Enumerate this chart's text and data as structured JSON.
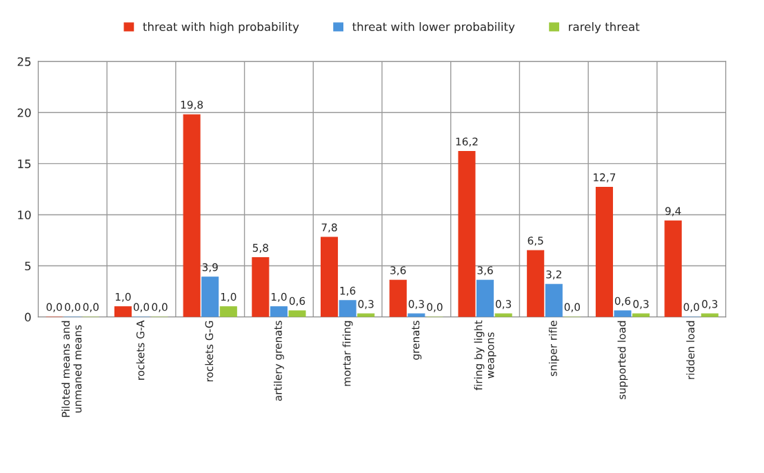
{
  "chart_data": {
    "type": "bar",
    "categories": [
      "Piloted means and\nunmaned means",
      "rockets G-A",
      "rockets G-G",
      "artilery grenats",
      "mortar firing",
      "grenats",
      "firing by light\nweapons",
      "sniper rifle",
      "supported load",
      "ridden load"
    ],
    "series": [
      {
        "name": "threat with high probability",
        "color": "#e8381a",
        "values": [
          0.0,
          1.0,
          19.8,
          5.8,
          7.8,
          3.6,
          16.2,
          6.5,
          12.7,
          9.4
        ],
        "value_labels": [
          "0,0",
          "1,0",
          "19,8",
          "5,8",
          "7,8",
          "3,6",
          "16,2",
          "6,5",
          "12,7",
          "9,4"
        ]
      },
      {
        "name": "threat with lower probability",
        "color": "#4a94dc",
        "values": [
          0.0,
          0.0,
          3.9,
          1.0,
          1.6,
          0.3,
          3.6,
          3.2,
          0.6,
          0.0
        ],
        "value_labels": [
          "0,0",
          "0,0",
          "3,9",
          "1,0",
          "1,6",
          "0,3",
          "3,6",
          "3,2",
          "0,6",
          "0,0"
        ]
      },
      {
        "name": "rarely threat",
        "color": "#9cc83c",
        "values": [
          0.0,
          0.0,
          1.0,
          0.6,
          0.3,
          0.0,
          0.3,
          0.0,
          0.3,
          0.3
        ],
        "value_labels": [
          "0,0",
          "0,0",
          "1,0",
          "0,6",
          "0,3",
          "0,0",
          "0,3",
          "0,0",
          "0,3",
          "0,3"
        ]
      }
    ],
    "ylim": [
      0,
      25
    ],
    "yticks": [
      0,
      5,
      10,
      15,
      20,
      25
    ],
    "grid": true,
    "legend": "top"
  }
}
